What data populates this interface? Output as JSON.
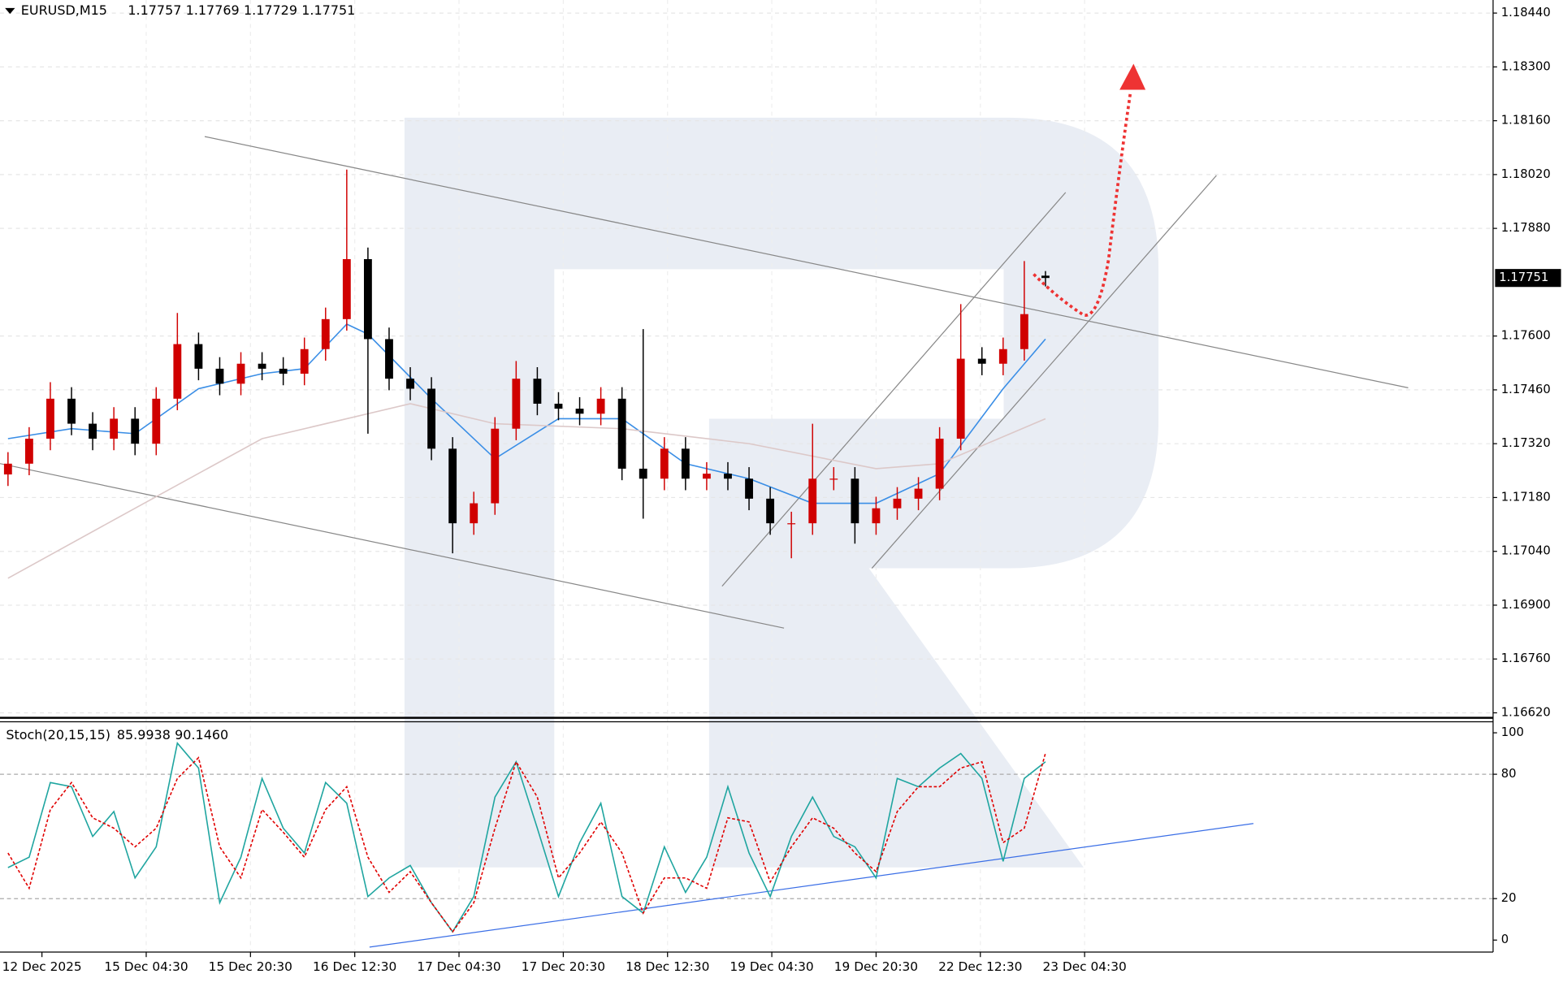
{
  "chart_data": [
    {
      "type": "candlestick",
      "title": "EURUSD,M15",
      "candles": {
        "open": [
          1.1724,
          1.17268,
          1.17333,
          1.17437,
          1.17372,
          1.17333,
          1.17385,
          1.1732,
          1.17437,
          1.17579,
          1.17515,
          1.17476,
          1.17528,
          1.17515,
          1.17502,
          1.17566,
          1.17644,
          1.178,
          1.17592,
          1.17489,
          1.17463,
          1.17307,
          1.17113,
          1.17165,
          1.17359,
          1.17489,
          1.17424,
          1.17411,
          1.17398,
          1.17437,
          1.17255,
          1.17229,
          1.17307,
          1.17229,
          1.17242,
          1.17229,
          1.17177,
          1.17113,
          1.17113,
          1.17229,
          1.17229,
          1.17113,
          1.17152,
          1.17177,
          1.17203,
          1.17333,
          1.17541,
          1.17528,
          1.17566,
          1.17757
        ],
        "high": [
          1.17298,
          1.17363,
          1.1748,
          1.17467,
          1.17402,
          1.17415,
          1.17415,
          1.17467,
          1.1766,
          1.17609,
          1.17545,
          1.17558,
          1.17558,
          1.17545,
          1.17596,
          1.17674,
          1.18033,
          1.1783,
          1.17622,
          1.17519,
          1.17493,
          1.17337,
          1.17195,
          1.17389,
          1.17535,
          1.17519,
          1.17454,
          1.17441,
          1.17467,
          1.17467,
          1.17618,
          1.17337,
          1.17337,
          1.17272,
          1.17272,
          1.17259,
          1.17207,
          1.17143,
          1.17372,
          1.17259,
          1.17259,
          1.17182,
          1.17207,
          1.17233,
          1.17363,
          1.17683,
          1.17571,
          1.17596,
          1.17795,
          1.17769
        ],
        "low": [
          1.1721,
          1.17238,
          1.17303,
          1.17342,
          1.17303,
          1.17303,
          1.1729,
          1.1729,
          1.17407,
          1.17485,
          1.17446,
          1.17446,
          1.17485,
          1.17472,
          1.17472,
          1.17536,
          1.17614,
          1.17346,
          1.17459,
          1.17433,
          1.17277,
          1.17035,
          1.17083,
          1.17135,
          1.17329,
          1.17394,
          1.17381,
          1.17368,
          1.17368,
          1.17225,
          1.17125,
          1.17199,
          1.17199,
          1.17199,
          1.17199,
          1.17147,
          1.17083,
          1.17022,
          1.17083,
          1.17199,
          1.1706,
          1.17083,
          1.17122,
          1.17147,
          1.17173,
          1.17303,
          1.17498,
          1.17498,
          1.17536,
          1.17729
        ],
        "close": [
          1.17268,
          1.17333,
          1.17437,
          1.17372,
          1.17333,
          1.17385,
          1.1732,
          1.17437,
          1.17579,
          1.17515,
          1.17476,
          1.17528,
          1.17515,
          1.17502,
          1.17566,
          1.17644,
          1.178,
          1.17592,
          1.17489,
          1.17463,
          1.17307,
          1.17113,
          1.17165,
          1.17359,
          1.17489,
          1.17424,
          1.17411,
          1.17398,
          1.17437,
          1.17255,
          1.17229,
          1.17307,
          1.17229,
          1.17242,
          1.17229,
          1.17177,
          1.17113,
          1.17113,
          1.17229,
          1.17229,
          1.17113,
          1.17152,
          1.17177,
          1.17203,
          1.17333,
          1.17541,
          1.17528,
          1.17566,
          1.17657,
          1.17751
        ]
      },
      "up_color": "#d00000",
      "down_color": "#000000",
      "series": [
        {
          "color": "#3a8ee6",
          "x": [
            0,
            3,
            6,
            9,
            12,
            14,
            16,
            17,
            20,
            23,
            26,
            29,
            32,
            35,
            38,
            41,
            44,
            47,
            49
          ],
          "values": [
            1.17333,
            1.17359,
            1.17346,
            1.17463,
            1.17502,
            1.17515,
            1.17631,
            1.17605,
            1.17437,
            1.17281,
            1.17385,
            1.17385,
            1.17268,
            1.17229,
            1.17165,
            1.17165,
            1.17242,
            1.17463,
            1.17592
          ]
        },
        {
          "color": "#dcc8c8",
          "x": [
            0,
            6,
            12,
            16,
            19,
            23,
            29,
            35,
            41,
            44,
            49
          ],
          "values": [
            1.1697,
            1.17152,
            1.17333,
            1.17385,
            1.17424,
            1.17372,
            1.17359,
            1.1732,
            1.17255,
            1.17268,
            1.17385
          ]
        }
      ],
      "ylim": [
        1.16607,
        1.18474
      ],
      "yticks": [
        {
          "value": 1.1844,
          "label": "1.18440"
        },
        {
          "value": 1.183,
          "label": "1.18300"
        },
        {
          "value": 1.1816,
          "label": "1.18160"
        },
        {
          "value": 1.1802,
          "label": "1.18020"
        },
        {
          "value": 1.1788,
          "label": "1.17880"
        },
        {
          "value": 1.176,
          "label": "1.17600"
        },
        {
          "value": 1.1746,
          "label": "1.17460"
        },
        {
          "value": 1.1732,
          "label": "1.17320"
        },
        {
          "value": 1.1718,
          "label": "1.17180"
        },
        {
          "value": 1.1704,
          "label": "1.17040"
        },
        {
          "value": 1.169,
          "label": "1.16900"
        },
        {
          "value": 1.1676,
          "label": "1.16760"
        },
        {
          "value": 1.1662,
          "label": "1.16620"
        }
      ],
      "grid": true
    },
    {
      "type": "line",
      "title": "Stoch(20,15,15)",
      "series": [
        {
          "color": "#1fa5a0",
          "values": [
            35,
            40,
            76,
            74,
            50,
            62,
            30,
            45,
            95,
            83,
            18,
            40,
            78,
            54,
            42,
            76,
            66,
            21,
            30,
            36,
            18,
            4,
            21,
            69,
            86,
            54,
            21,
            47,
            66,
            21,
            13,
            45,
            23,
            40,
            74,
            42,
            21,
            50,
            69,
            50,
            45,
            30,
            78,
            74,
            83,
            90,
            78,
            38,
            78,
            85.9938
          ]
        },
        {
          "color": "#e00000",
          "dashed": true,
          "values": [
            42,
            25,
            63,
            76,
            59,
            54,
            45,
            54,
            78,
            88,
            45,
            30,
            63,
            52,
            40,
            63,
            74,
            40,
            23,
            33,
            18,
            4,
            18,
            54,
            86,
            69,
            30,
            42,
            57,
            42,
            13,
            30,
            30,
            25,
            59,
            57,
            28,
            45,
            59,
            54,
            42,
            33,
            62,
            74,
            74,
            83,
            86,
            47,
            54,
            90.146
          ],
          "value_labels": [
            null,
            null,
            null,
            null,
            null,
            null,
            null,
            null,
            null,
            null,
            null,
            null,
            null,
            null,
            null,
            null,
            null,
            null,
            null,
            null,
            null,
            null,
            null,
            null,
            null,
            null,
            null,
            null,
            null,
            null,
            null,
            null,
            null,
            null,
            null,
            null,
            null,
            null,
            null,
            null,
            null,
            null,
            null,
            null,
            null,
            null,
            null,
            null,
            null,
            "90.1460"
          ]
        }
      ],
      "ylim": [
        -5.8,
        105.3
      ],
      "yticks": [
        0,
        20,
        80,
        100
      ],
      "levels": [
        20,
        80
      ],
      "xtick_labels": [
        "12 Dec 2025",
        "15 Dec 04:30",
        "15 Dec 20:30",
        "16 Dec 12:30",
        "17 Dec 04:30",
        "17 Dec 20:30",
        "18 Dec 12:30",
        "19 Dec 04:30",
        "19 Dec 20:30",
        "22 Dec 12:30",
        "23 Dec 04:30"
      ]
    }
  ]
}
